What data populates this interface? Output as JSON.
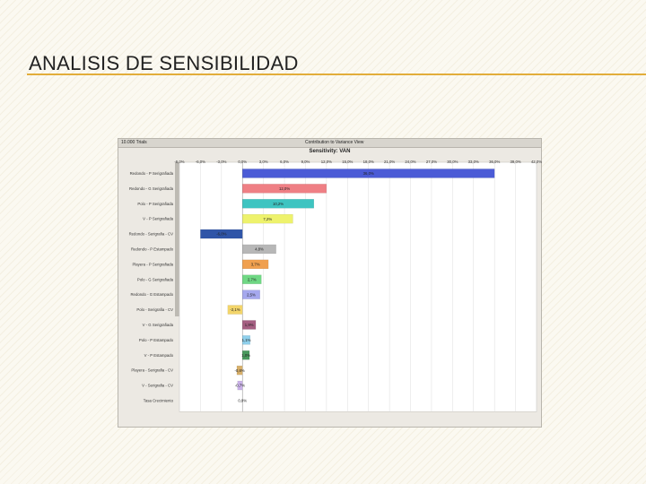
{
  "slide": {
    "title": "ANALISIS DE SENSIBILIDAD"
  },
  "window": {
    "trials_label": "10.000 Trials",
    "view_label": "Contribution to Variance View"
  },
  "colors": {
    "accent_rule": "#e2ad3a"
  },
  "chart_data": {
    "type": "bar",
    "orientation": "horizontal",
    "title": "Sensitivity: VAN",
    "xlim": [
      -9.0,
      42.0
    ],
    "x_ticks": [
      -9.0,
      -6.0,
      -3.0,
      0.0,
      3.0,
      6.0,
      9.0,
      12.0,
      15.0,
      18.0,
      21.0,
      24.0,
      27.0,
      30.0,
      33.0,
      36.0,
      39.0,
      42.0
    ],
    "x_tick_labels": [
      "-9,0%",
      "-6,0%",
      "-3,0%",
      "0,0%",
      "3,0%",
      "6,0%",
      "9,0%",
      "12,0%",
      "15,0%",
      "18,0%",
      "21,0%",
      "24,0%",
      "27,0%",
      "30,0%",
      "33,0%",
      "36,0%",
      "39,0%",
      "42,0%"
    ],
    "grid": true,
    "categories": [
      "Redondo - P Serigrafiada",
      "Redondo - G Serigrafiada",
      "Polo - P Serigrafiada",
      "V - P Serigrafiada",
      "Redondo - Serigrafia - CV",
      "Redondo - P Estampado",
      "Playera - P Serigrafiada",
      "Polo - G Serigrafiada",
      "Redondo - G Estampado",
      "Polo - Serigrafia - CV",
      "V - G Serigrafiada",
      "Polo - P Estampado",
      "V - P Estampado",
      "Playera - Serigrafia - CV",
      "V - Serigrafia - CV",
      "Tasa Crecimiento"
    ],
    "values": [
      36.0,
      12.0,
      10.2,
      7.2,
      -6.0,
      4.8,
      3.7,
      2.7,
      2.5,
      -2.1,
      1.9,
      1.1,
      1.0,
      -0.8,
      -0.7,
      0.0
    ],
    "value_labels": [
      "36,0%",
      "12,0%",
      "10,2%",
      "7,2%",
      "-6,0%",
      "4,8%",
      "3,7%",
      "2,7%",
      "2,5%",
      "-2,1%",
      "1,9%",
      "1,1%",
      "1,0%",
      "-0,8%",
      "-0,7%",
      "0,0%"
    ],
    "bar_colors": [
      "#4b5bd6",
      "#ef7f84",
      "#3ec4c1",
      "#eef26c",
      "#2f55a8",
      "#b7b7b7",
      "#f0a04f",
      "#6fd884",
      "#a5a8ee",
      "#f3d56a",
      "#a55f82",
      "#8fd0ec",
      "#4a9a5e",
      "#d8b06a",
      "#c9b1e8",
      "#d9d9d9"
    ]
  }
}
